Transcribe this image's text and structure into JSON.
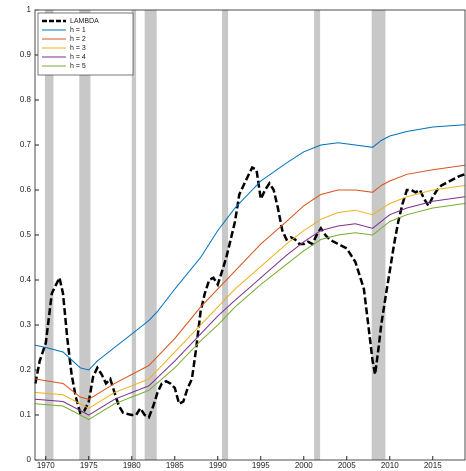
{
  "chart_data": {
    "type": "line",
    "xlim": [
      1968.75,
      2018.75
    ],
    "ylim": [
      0,
      1
    ],
    "xticks": [
      1970,
      1975,
      1980,
      1985,
      1990,
      1995,
      2000,
      2005,
      2010,
      2015
    ],
    "yticks": [
      0,
      0.1,
      0.2,
      0.3,
      0.4,
      0.5,
      0.6,
      0.7,
      0.8,
      0.9,
      1
    ],
    "shading_color": "#c8c8c8",
    "shaded_regions": [
      [
        1969.9,
        1970.9
      ],
      [
        1973.9,
        1975.2
      ],
      [
        1980.0,
        1980.5
      ],
      [
        1981.5,
        1982.9
      ],
      [
        1990.5,
        1991.2
      ],
      [
        2001.2,
        2001.9
      ],
      [
        2007.9,
        2009.5
      ]
    ],
    "legend_position": "upper left",
    "series": [
      {
        "name": "LAMBDA",
        "color": "#000000",
        "dashed": true,
        "x": [
          1968.8,
          1969.3,
          1970,
          1970.7,
          1971.2,
          1971.6,
          1972,
          1972.5,
          1973,
          1973.5,
          1974,
          1974.5,
          1975,
          1975.5,
          1976,
          1976.5,
          1977,
          1977.5,
          1978,
          1978.5,
          1979,
          1980,
          1980.5,
          1981,
          1981.5,
          1982,
          1982.5,
          1983,
          1983.5,
          1984,
          1984.5,
          1985,
          1985.5,
          1986,
          1986.5,
          1987,
          1987.5,
          1988,
          1988.5,
          1989,
          1989.5,
          1990,
          1990.5,
          1991,
          1991.5,
          1992,
          1992.5,
          1993,
          1993.5,
          1994,
          1994.5,
          1995,
          1995.5,
          1996,
          1996.5,
          1997,
          1997.5,
          1998,
          1998.5,
          1999,
          1999.5,
          2000,
          2000.5,
          2001,
          2001.5,
          2002,
          2002.5,
          2003,
          2003.5,
          2004,
          2005,
          2006,
          2007,
          2007.5,
          2008,
          2008.3,
          2008.7,
          2009,
          2009.5,
          2010,
          2010.5,
          2011,
          2011.5,
          2012,
          2012.5,
          2013,
          2013.5,
          2014,
          2014.5,
          2015,
          2015.5,
          2016,
          2017,
          2018,
          2018.7
        ],
        "values": [
          0.17,
          0.22,
          0.26,
          0.37,
          0.39,
          0.405,
          0.37,
          0.27,
          0.19,
          0.14,
          0.105,
          0.11,
          0.13,
          0.185,
          0.205,
          0.19,
          0.17,
          0.18,
          0.15,
          0.12,
          0.105,
          0.1,
          0.1,
          0.115,
          0.1,
          0.095,
          0.12,
          0.15,
          0.17,
          0.175,
          0.17,
          0.16,
          0.125,
          0.13,
          0.16,
          0.18,
          0.25,
          0.33,
          0.37,
          0.4,
          0.405,
          0.39,
          0.42,
          0.45,
          0.49,
          0.53,
          0.59,
          0.61,
          0.63,
          0.65,
          0.645,
          0.58,
          0.6,
          0.615,
          0.6,
          0.56,
          0.51,
          0.49,
          0.495,
          0.49,
          0.48,
          0.48,
          0.485,
          0.48,
          0.5,
          0.515,
          0.5,
          0.49,
          0.485,
          0.48,
          0.47,
          0.44,
          0.38,
          0.3,
          0.22,
          0.19,
          0.25,
          0.3,
          0.36,
          0.42,
          0.48,
          0.53,
          0.57,
          0.6,
          0.6,
          0.595,
          0.6,
          0.58,
          0.565,
          0.585,
          0.6,
          0.61,
          0.62,
          0.63,
          0.635
        ]
      },
      {
        "name": "h = 1",
        "color": "#0072bd",
        "x": [
          1968.8,
          1970,
          1972,
          1974,
          1975,
          1976,
          1978,
          1980,
          1982,
          1983,
          1985,
          1988,
          1990,
          1992,
          1995,
          1998,
          2000,
          2002,
          2004,
          2006,
          2008,
          2009,
          2010,
          2012,
          2015,
          2018.7
        ],
        "values": [
          0.255,
          0.25,
          0.24,
          0.205,
          0.2,
          0.22,
          0.25,
          0.28,
          0.31,
          0.33,
          0.38,
          0.45,
          0.51,
          0.56,
          0.62,
          0.66,
          0.685,
          0.7,
          0.705,
          0.7,
          0.695,
          0.71,
          0.72,
          0.73,
          0.74,
          0.745
        ]
      },
      {
        "name": "h = 2",
        "color": "#d95319",
        "x": [
          1968.8,
          1972,
          1974,
          1975,
          1978,
          1980,
          1982,
          1985,
          1988,
          1990,
          1992,
          1995,
          1998,
          2000,
          2002,
          2004,
          2006,
          2008,
          2009,
          2010,
          2012,
          2015,
          2018.7
        ],
        "values": [
          0.18,
          0.17,
          0.14,
          0.135,
          0.17,
          0.19,
          0.21,
          0.27,
          0.34,
          0.38,
          0.42,
          0.48,
          0.53,
          0.565,
          0.59,
          0.6,
          0.6,
          0.595,
          0.61,
          0.62,
          0.635,
          0.645,
          0.655
        ]
      },
      {
        "name": "h = 3",
        "color": "#edb120",
        "x": [
          1968.8,
          1972,
          1975,
          1978,
          1980,
          1982,
          1985,
          1988,
          1990,
          1992,
          1995,
          1998,
          2000,
          2002,
          2004,
          2006,
          2008,
          2010,
          2012,
          2015,
          2018.7
        ],
        "values": [
          0.15,
          0.145,
          0.115,
          0.15,
          0.165,
          0.18,
          0.24,
          0.3,
          0.34,
          0.38,
          0.43,
          0.48,
          0.51,
          0.535,
          0.55,
          0.555,
          0.545,
          0.57,
          0.585,
          0.6,
          0.61
        ]
      },
      {
        "name": "h = 4",
        "color": "#7e2f8e",
        "x": [
          1968.8,
          1972,
          1975,
          1978,
          1980,
          1982,
          1985,
          1988,
          1990,
          1992,
          1995,
          1998,
          2000,
          2002,
          2004,
          2006,
          2008,
          2010,
          2012,
          2015,
          2018.7
        ],
        "values": [
          0.135,
          0.13,
          0.1,
          0.135,
          0.15,
          0.165,
          0.22,
          0.28,
          0.32,
          0.355,
          0.405,
          0.455,
          0.485,
          0.51,
          0.52,
          0.525,
          0.515,
          0.545,
          0.56,
          0.575,
          0.585
        ]
      },
      {
        "name": "h = 5",
        "color": "#77ac30",
        "x": [
          1968.8,
          1972,
          1975,
          1978,
          1980,
          1982,
          1985,
          1988,
          1990,
          1992,
          1995,
          1998,
          2000,
          2002,
          2004,
          2006,
          2008,
          2010,
          2012,
          2015,
          2018.7
        ],
        "values": [
          0.125,
          0.12,
          0.09,
          0.125,
          0.14,
          0.155,
          0.205,
          0.265,
          0.3,
          0.34,
          0.39,
          0.435,
          0.465,
          0.49,
          0.5,
          0.505,
          0.5,
          0.53,
          0.545,
          0.56,
          0.57
        ]
      }
    ]
  }
}
